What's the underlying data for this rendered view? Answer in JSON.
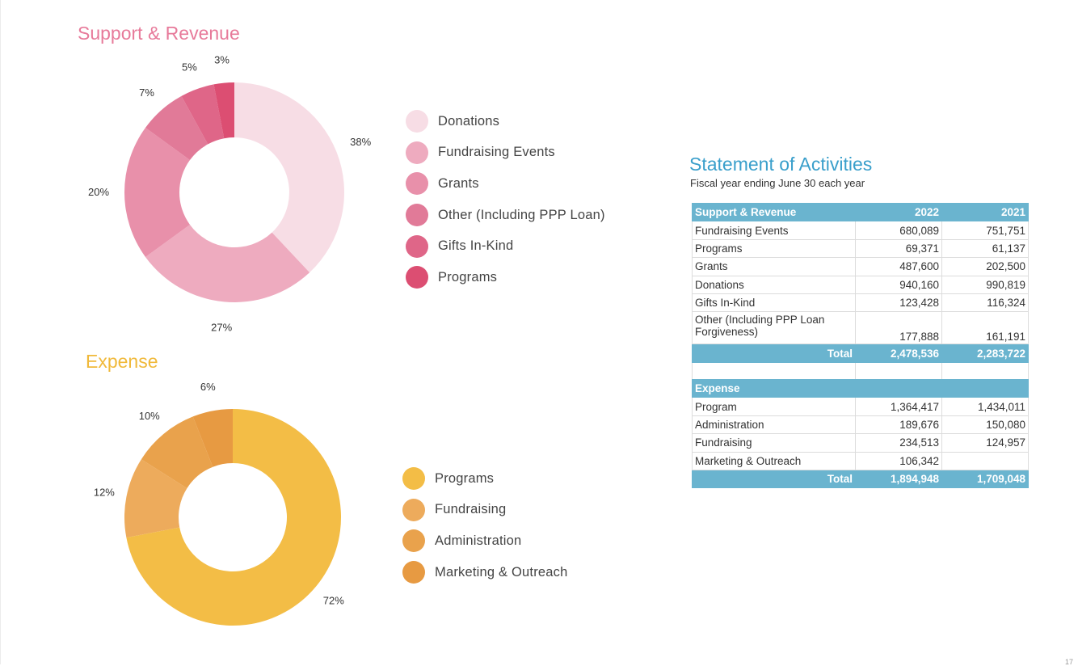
{
  "chart_data": [
    {
      "type": "pie",
      "style": "donut",
      "title": "Support & Revenue",
      "categories": [
        "Donations",
        "Fundraising Events",
        "Grants",
        "Other (Including PPP Loan)",
        "Gifts In-Kind",
        "Programs"
      ],
      "values": [
        38,
        27,
        20,
        7,
        5,
        3
      ],
      "value_labels": [
        "38%",
        "27%",
        "20%",
        "7%",
        "5%",
        "3%"
      ],
      "colors": [
        "#f7dde5",
        "#eeabbf",
        "#e890aa",
        "#e17a98",
        "#df6688",
        "#dc4e72"
      ],
      "legend_position": "right"
    },
    {
      "type": "pie",
      "style": "donut",
      "title": "Expense",
      "categories": [
        "Programs",
        "Fundraising",
        "Administration",
        "Marketing & Outreach"
      ],
      "values": [
        72,
        12,
        10,
        6
      ],
      "value_labels": [
        "72%",
        "12%",
        "10%",
        "6%"
      ],
      "colors": [
        "#f3bd46",
        "#edab5c",
        "#e9a24c",
        "#e79a42"
      ],
      "legend_position": "right"
    },
    {
      "type": "table",
      "title": "Statement of Activities",
      "subtitle": "Fiscal year ending June 30 each year",
      "sections": [
        {
          "header": [
            "Support & Revenue",
            "2022",
            "2021"
          ],
          "rows": [
            [
              "Fundraising Events",
              "680,089",
              "751,751"
            ],
            [
              "Programs",
              "69,371",
              "61,137"
            ],
            [
              "Grants",
              "487,600",
              "202,500"
            ],
            [
              "Donations",
              "940,160",
              "990,819"
            ],
            [
              "Gifts In-Kind",
              "123,428",
              "116,324"
            ],
            [
              "Other (Including PPP Loan Forgiveness)",
              "177,888",
              "161,191"
            ]
          ],
          "total": [
            "Total",
            "2,478,536",
            "2,283,722"
          ]
        },
        {
          "header": [
            "Expense",
            "",
            ""
          ],
          "rows": [
            [
              "Program",
              "1,364,417",
              "1,434,011"
            ],
            [
              "Administration",
              "189,676",
              "150,080"
            ],
            [
              "Fundraising",
              "234,513",
              "124,957"
            ],
            [
              "Marketing & Outreach",
              "106,342",
              ""
            ]
          ],
          "total": [
            "Total",
            "1,894,948",
            "1,709,048"
          ]
        }
      ]
    }
  ],
  "page_number": "17"
}
